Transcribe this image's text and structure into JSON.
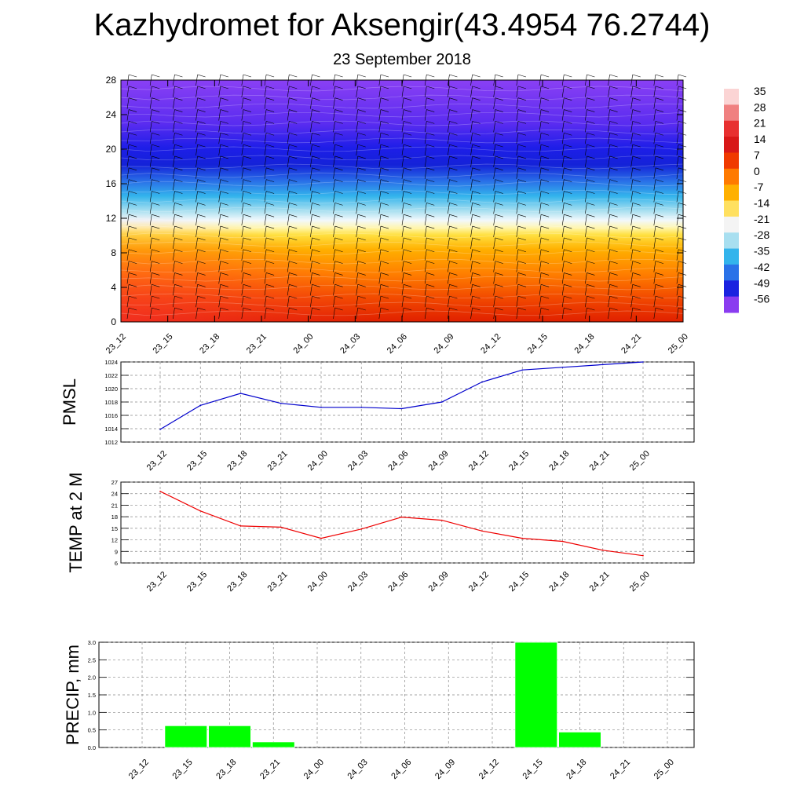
{
  "title": "Kazhydromet for Aksengir(43.4954 76.2744)",
  "subtitle": "23 September 2018",
  "chart_data": [
    {
      "type": "heatmap",
      "x_categories": [
        "23_12",
        "23_15",
        "23_18",
        "23_21",
        "24_00",
        "24_03",
        "24_06",
        "24_09",
        "24_12",
        "24_15",
        "24_18",
        "24_21",
        "25_00"
      ],
      "ylim": [
        0,
        28
      ],
      "yticks": [
        0,
        4,
        8,
        12,
        16,
        20,
        24,
        28
      ],
      "colorbar_labels": [
        "35",
        "28",
        "21",
        "14",
        "7",
        "0",
        "-7",
        "-14",
        "-21",
        "-28",
        "-35",
        "-42",
        "-49",
        "-56"
      ],
      "colorbar_colors": [
        "#fbd4d4",
        "#f08080",
        "#e83030",
        "#d81818",
        "#f03a00",
        "#ff7a00",
        "#ffb000",
        "#ffe060",
        "#f4f4f4",
        "#a8dff0",
        "#33b4ec",
        "#2a72e8",
        "#1a22e0",
        "#8a3cf0"
      ],
      "wind_barbs": true
    },
    {
      "type": "line",
      "ylabel": "PMSL",
      "x": [
        "23_12",
        "23_15",
        "23_18",
        "23_21",
        "24_00",
        "24_03",
        "24_06",
        "24_09",
        "24_12",
        "24_15",
        "24_18",
        "24_21",
        "25_00"
      ],
      "values": [
        1013.9,
        1017.5,
        1019.3,
        1017.8,
        1017.2,
        1017.2,
        1017.0,
        1018.0,
        1021.0,
        1022.8,
        1023.2,
        1023.6,
        1024.0
      ],
      "ylim": [
        1012,
        1024
      ],
      "yticks": [
        1012,
        1014,
        1016,
        1018,
        1020,
        1022,
        1024
      ],
      "color": "#0000cc",
      "grid": true
    },
    {
      "type": "line",
      "ylabel": "TEMP at 2 M",
      "x": [
        "23_12",
        "23_15",
        "23_18",
        "23_21",
        "24_00",
        "24_03",
        "24_06",
        "24_09",
        "24_12",
        "24_15",
        "24_18",
        "24_21",
        "25_00"
      ],
      "values": [
        24.6,
        19.5,
        15.6,
        15.3,
        12.4,
        14.8,
        17.9,
        17.1,
        14.3,
        12.4,
        11.6,
        9.3,
        7.9
      ],
      "ylim": [
        6,
        27
      ],
      "yticks": [
        6,
        9,
        12,
        15,
        18,
        21,
        24,
        27
      ],
      "color": "#ee0000",
      "grid": true
    },
    {
      "type": "bar",
      "ylabel": "PRECIP, mm",
      "categories": [
        "23_12",
        "23_15",
        "23_18",
        "23_21",
        "24_00",
        "24_03",
        "24_06",
        "24_09",
        "24_12",
        "24_15",
        "24_18",
        "24_21",
        "25_00"
      ],
      "values": [
        0,
        0.62,
        0.62,
        0.16,
        0,
        0,
        0,
        0,
        0,
        3.0,
        0.44,
        0,
        0
      ],
      "ylim": [
        0,
        3.0
      ],
      "yticks": [
        "0.0",
        "0.5",
        "1.0",
        "1.5",
        "2.0",
        "2.5",
        "3.0"
      ],
      "color": "#00ff00",
      "grid": true
    }
  ]
}
